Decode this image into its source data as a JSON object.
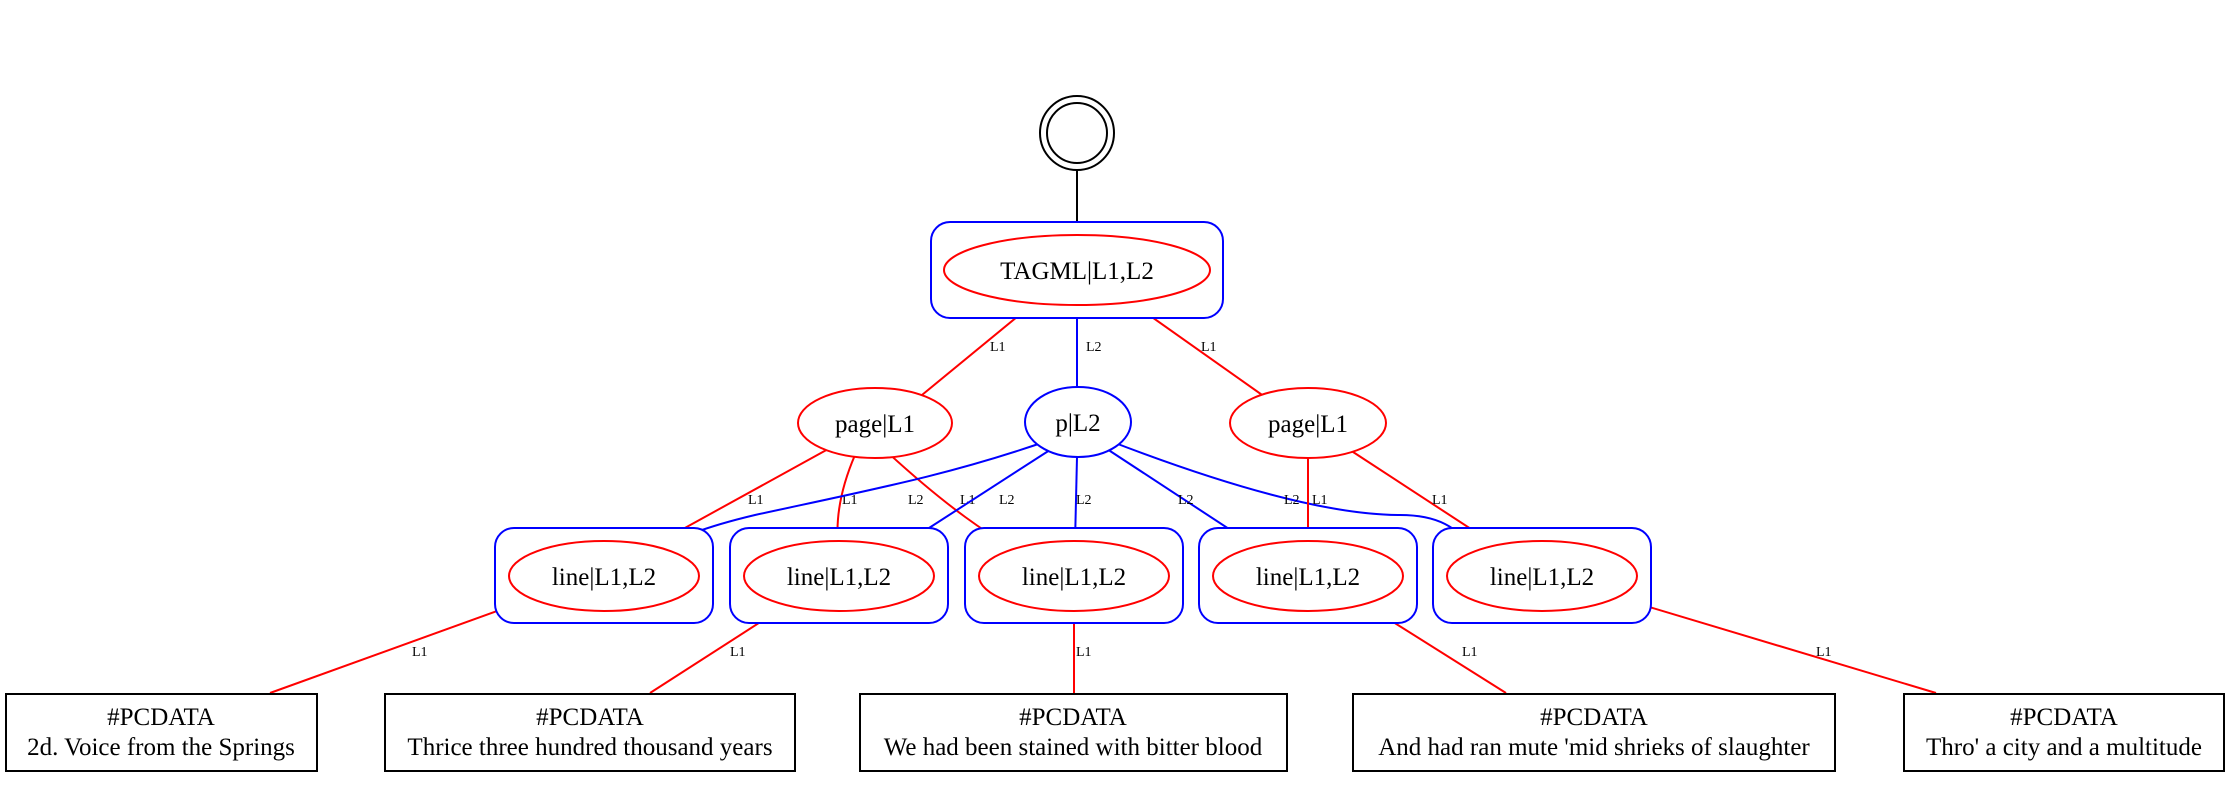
{
  "colors": {
    "l1": "#ff0000",
    "l2": "#0000ff",
    "default": "#000000"
  },
  "nodes": {
    "root": {
      "label": "TAGML|L1,L2"
    },
    "page_left": {
      "label": "page|L1"
    },
    "paragraph": {
      "label": "p|L2"
    },
    "page_right": {
      "label": "page|L1"
    },
    "lines": [
      {
        "label": "line|L1,L2"
      },
      {
        "label": "line|L1,L2"
      },
      {
        "label": "line|L1,L2"
      },
      {
        "label": "line|L1,L2"
      },
      {
        "label": "line|L1,L2"
      }
    ],
    "leaves": [
      {
        "type": "#PCDATA",
        "text": "2d. Voice from the Springs"
      },
      {
        "type": "#PCDATA",
        "text": "Thrice three hundred thousand years"
      },
      {
        "type": "#PCDATA",
        "text": "We had been stained with bitter blood"
      },
      {
        "type": "#PCDATA",
        "text": "And had ran mute 'mid shrieks of slaughter"
      },
      {
        "type": "#PCDATA",
        "text": "Thro' a city and a multitude"
      }
    ]
  },
  "edge_labels": {
    "root_to_page_left": "L1",
    "root_to_p": "L2",
    "root_to_page_right": "L1",
    "page_left_to_line1": "L1",
    "page_left_to_line2": "L1",
    "page_left_to_line3": "L1",
    "p_to_line1": "L2",
    "p_to_line2": "L2",
    "p_to_line3": "L2",
    "p_to_line4": "L2",
    "p_to_line5": "L2",
    "page_right_to_line4": "L1",
    "page_right_to_line5": "L1",
    "line1_to_text": "L1",
    "line2_to_text": "L1",
    "line3_to_text": "L1",
    "line4_to_text": "L1",
    "line5_to_text": "L1"
  }
}
